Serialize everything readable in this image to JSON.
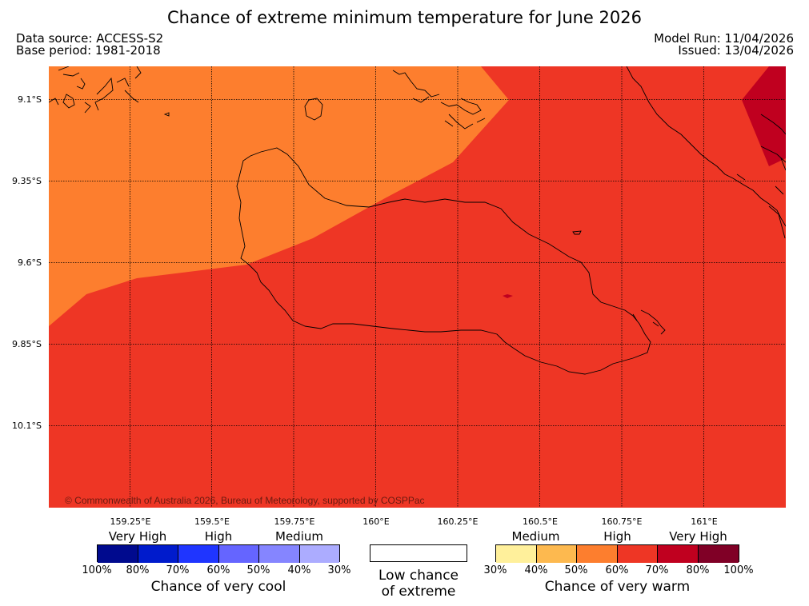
{
  "title": "Chance of extreme minimum temperature for June 2026",
  "data_source": "Data source: ACCESS-S2",
  "base_period": "Base period: 1981-2018",
  "model_run": "Model Run: 11/04/2026",
  "issued": "Issued: 13/04/2026",
  "copyright": "© Commonwealth of Australia 2026, Bureau of Meteorology, supported by COSPPac",
  "lat_labels": [
    "9.1°S",
    "9.35°S",
    "9.6°S",
    "9.85°S",
    "10.1°S"
  ],
  "lon_labels": [
    "159.25°E",
    "159.5°E",
    "159.75°E",
    "160°E",
    "160.25°E",
    "160.5°E",
    "160.75°E",
    "161°E"
  ],
  "map_colors": {
    "medium_warm": "#fd7e2e",
    "high_warm": "#ee3625",
    "very_high_warm": "#c0001f",
    "coast": "#000000",
    "grid": "#000000"
  },
  "legend": {
    "cool": {
      "levels": [
        "Very High",
        "High",
        "Medium"
      ],
      "percents": [
        "100%",
        "80%",
        "70%",
        "60%",
        "50%",
        "40%",
        "30%"
      ],
      "colors": [
        "#000a8e",
        "#001bcc",
        "#1f35ff",
        "#6565ff",
        "#8585ff",
        "#acacff"
      ],
      "caption": "Chance of very cool"
    },
    "neutral": {
      "caption_line1": "Low chance",
      "caption_line2": "of extreme"
    },
    "warm": {
      "levels": [
        "Medium",
        "High",
        "Very High"
      ],
      "percents": [
        "30%",
        "40%",
        "50%",
        "60%",
        "70%",
        "80%",
        "100%"
      ],
      "colors": [
        "#fff09b",
        "#fdb94f",
        "#fd7e2e",
        "#ee3625",
        "#c0001f",
        "#800026"
      ],
      "caption": "Chance of very warm"
    }
  }
}
